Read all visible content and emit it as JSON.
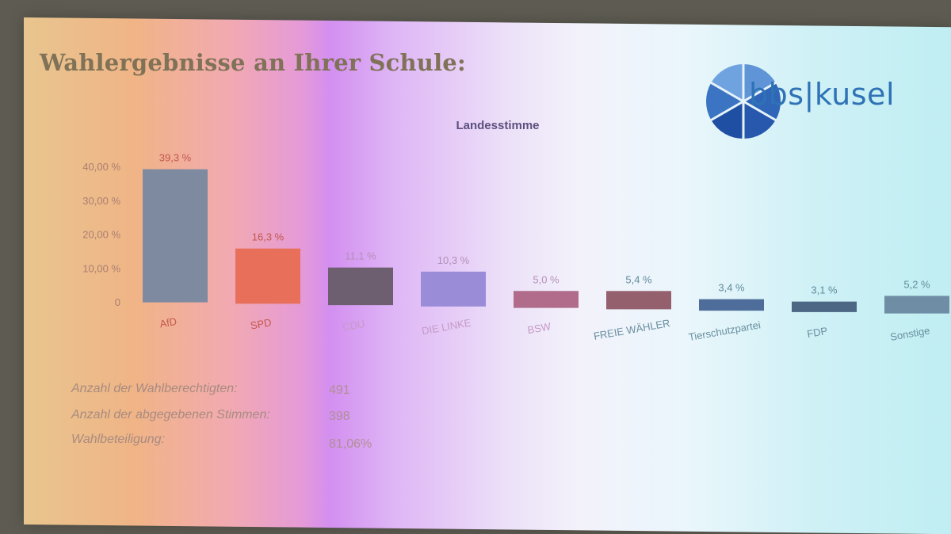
{
  "page": {
    "title": "Wahlergebnisse an Ihrer Schule:",
    "logo_text": "bbs|kusel"
  },
  "chart_data": {
    "type": "bar",
    "title": "Landesstimme",
    "xlabel": "",
    "ylabel": "",
    "ylim": [
      0,
      40
    ],
    "yticks": [
      "0",
      "10,00 %",
      "20,00 %",
      "30,00 %",
      "40,00 %"
    ],
    "grid": false,
    "categories": [
      "AfD",
      "SPD",
      "CDU",
      "DIE LINKE",
      "BSW",
      "FREIE WÄHLER",
      "Tierschutzpartei",
      "FDP",
      "Sonstige"
    ],
    "values": [
      39.3,
      16.3,
      11.1,
      10.3,
      5.0,
      5.4,
      3.4,
      3.1,
      5.2
    ],
    "value_labels": [
      "39,3 %",
      "16,3 %",
      "11,1 %",
      "10,3 %",
      "5,0 %",
      "5,4 %",
      "3,4 %",
      "3,1 %",
      "5,2 %"
    ],
    "colors": [
      "#7e8aa0",
      "#e8705a",
      "#6d5f70",
      "#9b8cd8",
      "#b06c8a",
      "#95606e",
      "#4f6d9a",
      "#4c6783",
      "#6f8ea6"
    ]
  },
  "stats": [
    {
      "label": "Anzahl der Wahlberechtigten:",
      "value": "491"
    },
    {
      "label": "Anzahl der abgegebenen Stimmen:",
      "value": "398"
    },
    {
      "label": "Wahlbeteiligung:",
      "value": "81,06%"
    }
  ]
}
